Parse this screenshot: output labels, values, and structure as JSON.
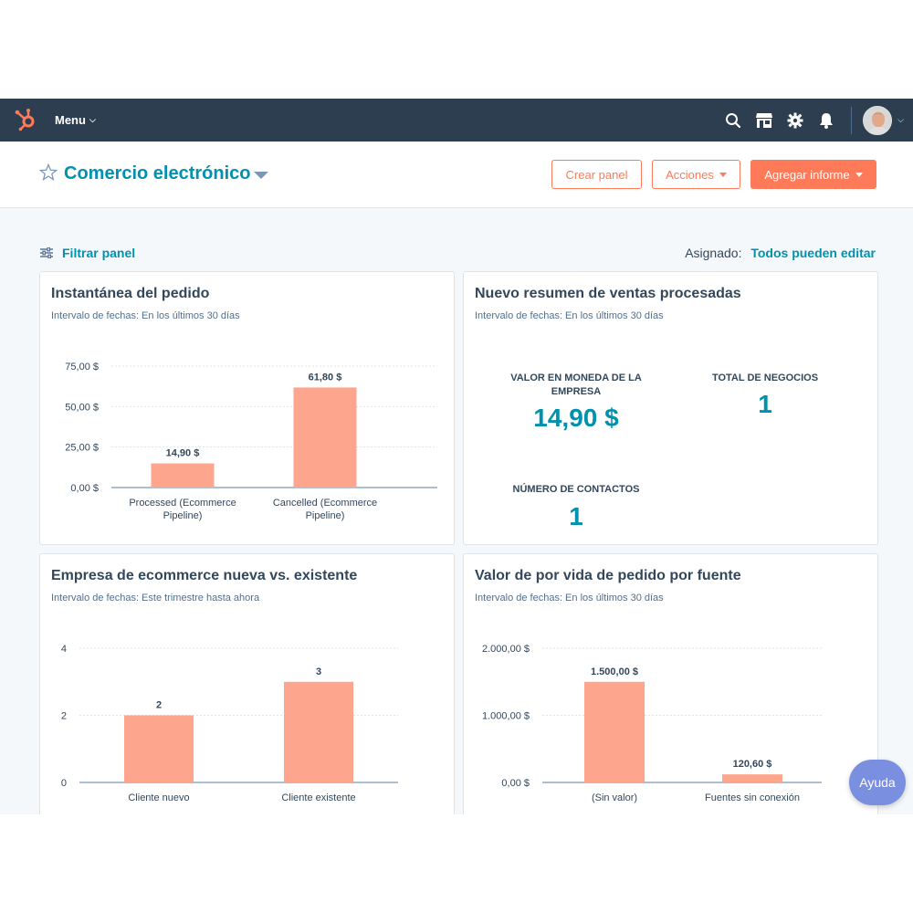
{
  "nav": {
    "menu_label": "Menu",
    "icons": [
      "search-icon",
      "marketplace-icon",
      "settings-icon",
      "notifications-icon"
    ]
  },
  "header": {
    "title": "Comercio electrónico",
    "create_label": "Crear panel",
    "actions_label": "Acciones",
    "add_report_label": "Agregar informe"
  },
  "filter": {
    "label": "Filtrar panel",
    "assigned_label": "Asignado:",
    "assigned_value": "Todos pueden editar"
  },
  "colors": {
    "accent": "#0091ae",
    "brand": "#ff7a59",
    "bar": "#fea58e",
    "nav": "#2d3e50"
  },
  "cards": [
    {
      "title": "Instantánea del pedido",
      "subtitle": "Intervalo de fechas: En los últimos 30 días"
    },
    {
      "title": "Nuevo resumen de ventas procesadas",
      "subtitle": "Intervalo de fechas: En los últimos 30 días",
      "kpis": [
        {
          "label": "VALOR EN MONEDA DE LA EMPRESA",
          "value": "14,90 $"
        },
        {
          "label": "TOTAL DE NEGOCIOS",
          "value": "1"
        },
        {
          "label": "NÚMERO DE CONTACTOS",
          "value": "1"
        }
      ]
    },
    {
      "title": "Empresa de ecommerce nueva vs. existente",
      "subtitle": "Intervalo de fechas: Este trimestre hasta ahora"
    },
    {
      "title": "Valor de por vida de pedido por fuente",
      "subtitle": "Intervalo de fechas: En los últimos 30 días"
    }
  ],
  "chart_data": [
    {
      "type": "bar",
      "categories": [
        [
          "Processed (Ecommerce",
          "Pipeline)"
        ],
        [
          "Cancelled (Ecommerce",
          "Pipeline)"
        ]
      ],
      "values": [
        14.9,
        61.8
      ],
      "value_labels": [
        "14,90 $",
        "61,80 $"
      ],
      "yticks": [
        0,
        25,
        50,
        75
      ],
      "ytick_labels": [
        "0,00 $",
        "25,00 $",
        "50,00 $",
        "75,00 $"
      ],
      "ylim": [
        0,
        75
      ]
    },
    {
      "type": "bar",
      "categories": [
        [
          "Cliente nuevo"
        ],
        [
          "Cliente existente"
        ]
      ],
      "values": [
        2,
        3
      ],
      "value_labels": [
        "2",
        "3"
      ],
      "yticks": [
        0,
        2,
        4
      ],
      "ytick_labels": [
        "0",
        "2",
        "4"
      ],
      "ylim": [
        0,
        4
      ]
    },
    {
      "type": "bar",
      "categories": [
        [
          "(Sin valor)"
        ],
        [
          "Fuentes sin conexión"
        ]
      ],
      "values": [
        1500,
        120.6
      ],
      "value_labels": [
        "1.500,00 $",
        "120,60 $"
      ],
      "yticks": [
        0,
        1000,
        2000
      ],
      "ytick_labels": [
        "0,00 $",
        "1.000,00 $",
        "2.000,00 $"
      ],
      "ylim": [
        0,
        2000
      ]
    }
  ],
  "help_label": "Ayuda"
}
